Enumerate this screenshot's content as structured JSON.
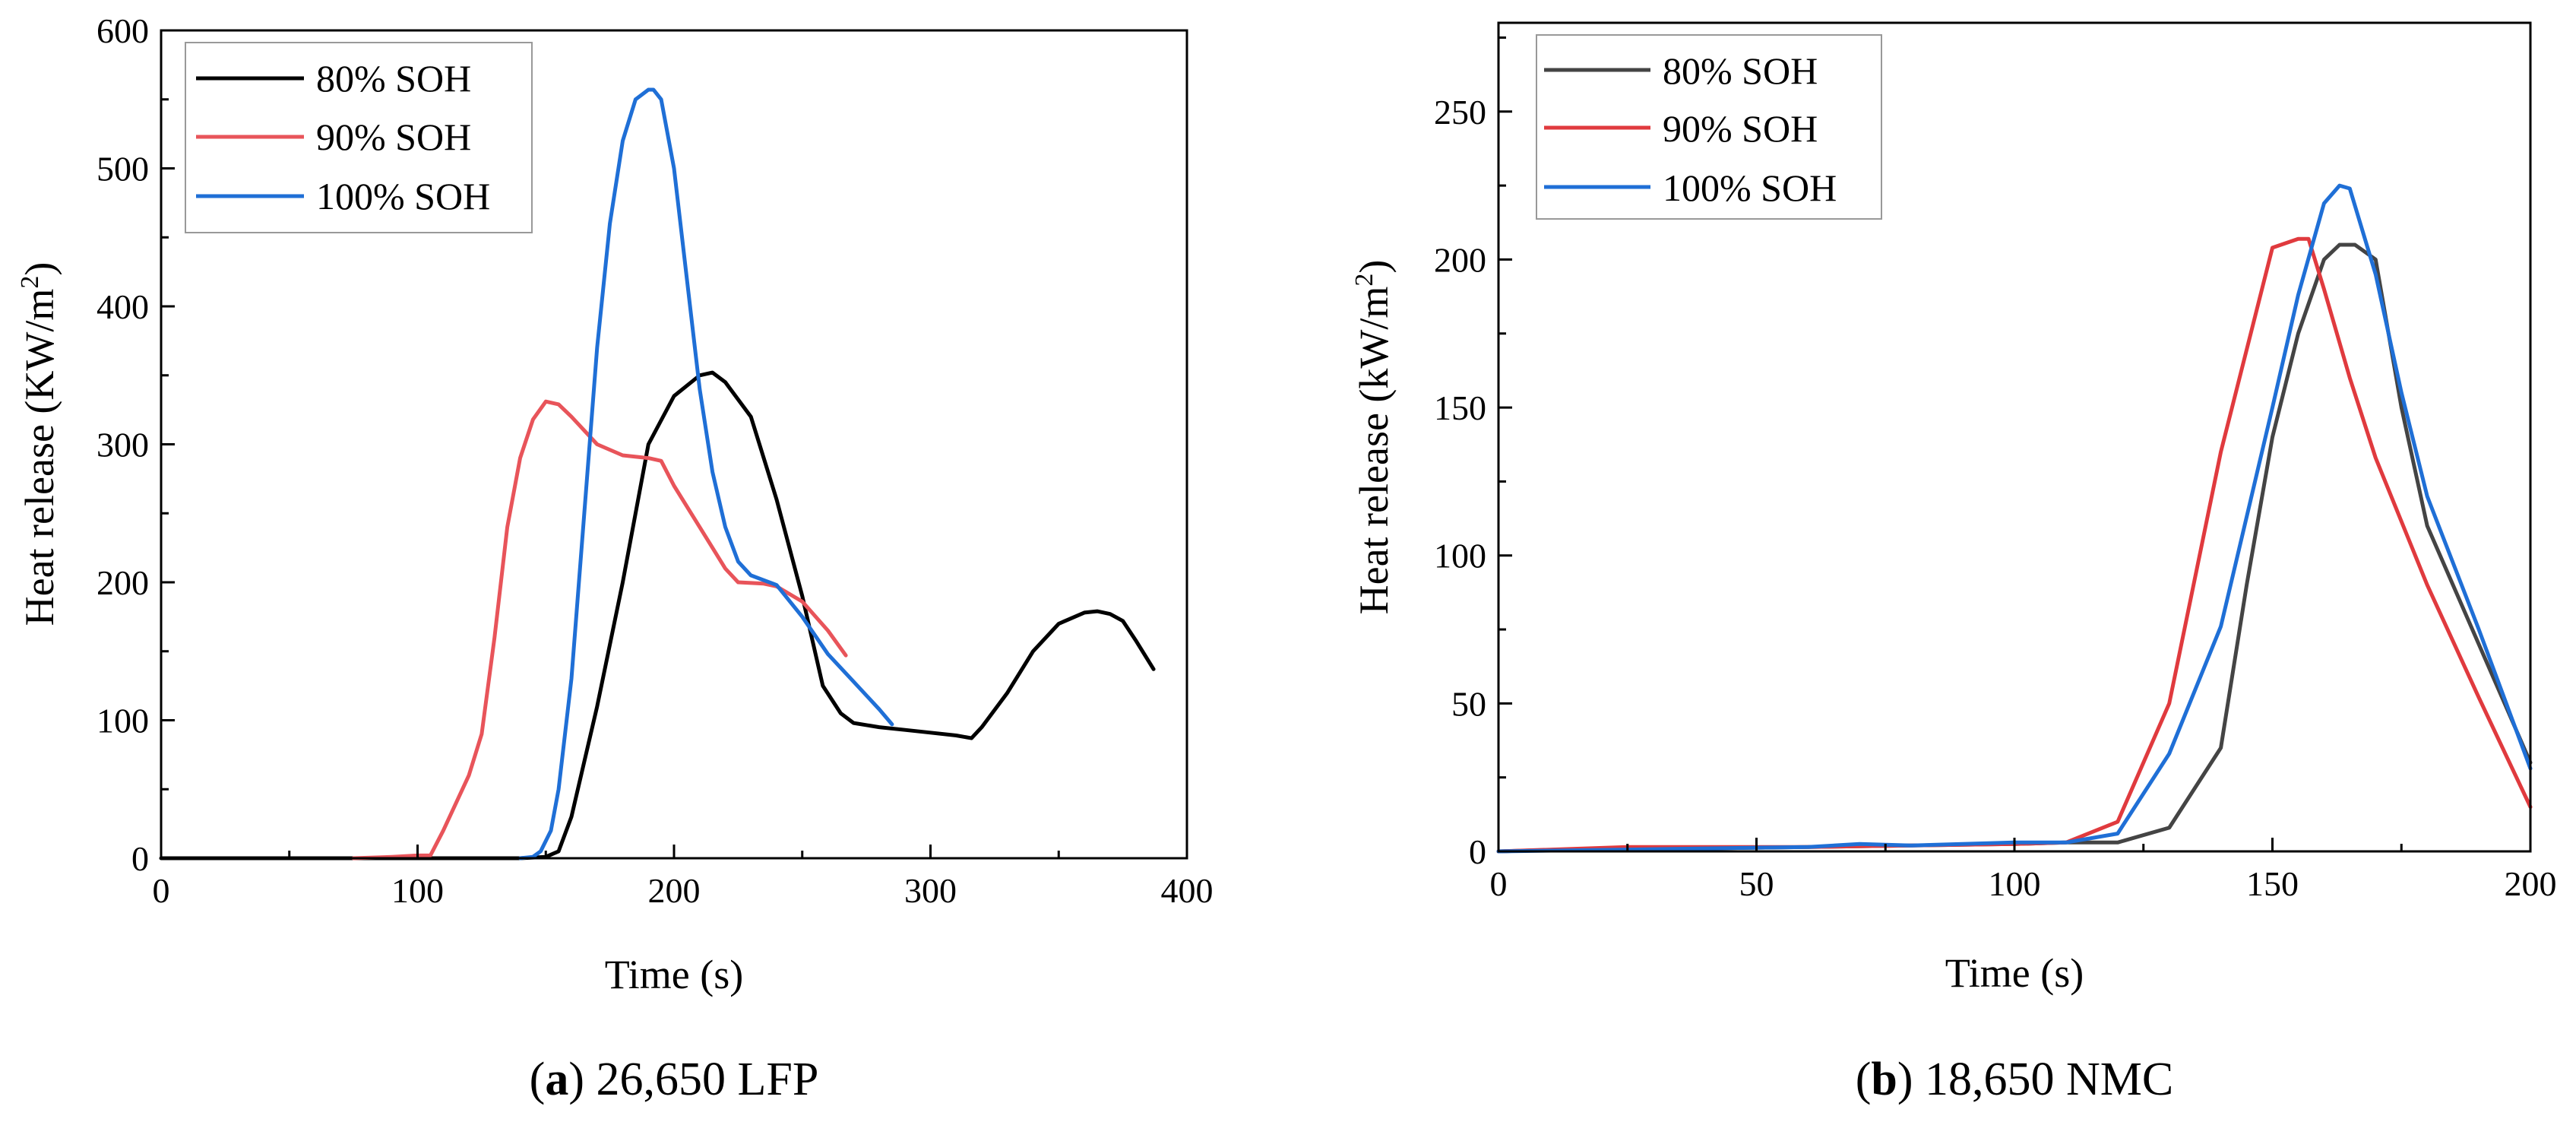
{
  "chart_data": [
    {
      "type": "line",
      "caption": {
        "open": "(",
        "letter": "a",
        "rest": ") 26,650 LFP"
      },
      "xlabel": "Time (s)",
      "ylabel": {
        "main": "Heat release (KW/m",
        "sup": "2",
        "close": ")"
      },
      "xlim": [
        0,
        400
      ],
      "ylim": [
        0,
        600
      ],
      "xticks": [
        0,
        100,
        200,
        300,
        400
      ],
      "yticks": [
        0,
        100,
        200,
        300,
        400,
        500,
        600
      ],
      "grid": false,
      "legend_position": "top-left",
      "series": [
        {
          "name": "80% SOH",
          "color": "#000000",
          "points": [
            [
              0,
              0
            ],
            [
              40,
              0
            ],
            [
              80,
              0
            ],
            [
              120,
              0
            ],
            [
              140,
              0
            ],
            [
              150,
              1
            ],
            [
              155,
              5
            ],
            [
              160,
              30
            ],
            [
              170,
              110
            ],
            [
              180,
              200
            ],
            [
              190,
              300
            ],
            [
              200,
              335
            ],
            [
              210,
              350
            ],
            [
              215,
              352
            ],
            [
              220,
              345
            ],
            [
              230,
              320
            ],
            [
              240,
              260
            ],
            [
              250,
              190
            ],
            [
              258,
              125
            ],
            [
              265,
              105
            ],
            [
              270,
              98
            ],
            [
              280,
              95
            ],
            [
              290,
              93
            ],
            [
              300,
              91
            ],
            [
              310,
              89
            ],
            [
              316,
              87
            ],
            [
              320,
              95
            ],
            [
              330,
              120
            ],
            [
              340,
              150
            ],
            [
              350,
              170
            ],
            [
              360,
              178
            ],
            [
              365,
              179
            ],
            [
              370,
              177
            ],
            [
              375,
              172
            ],
            [
              380,
              158
            ],
            [
              387,
              137
            ]
          ]
        },
        {
          "name": "90% SOH",
          "color": "#e8545a",
          "points": [
            [
              75,
              0
            ],
            [
              90,
              1
            ],
            [
              100,
              2
            ],
            [
              105,
              2
            ],
            [
              110,
              20
            ],
            [
              120,
              60
            ],
            [
              125,
              90
            ],
            [
              130,
              160
            ],
            [
              135,
              240
            ],
            [
              140,
              290
            ],
            [
              145,
              318
            ],
            [
              150,
              331
            ],
            [
              155,
              329
            ],
            [
              160,
              320
            ],
            [
              170,
              300
            ],
            [
              180,
              292
            ],
            [
              190,
              290
            ],
            [
              195,
              288
            ],
            [
              200,
              270
            ],
            [
              210,
              240
            ],
            [
              215,
              225
            ],
            [
              220,
              210
            ],
            [
              225,
              200
            ],
            [
              235,
              199
            ],
            [
              240,
              197
            ],
            [
              250,
              186
            ],
            [
              260,
              165
            ],
            [
              267,
              147
            ]
          ]
        },
        {
          "name": "100% SOH",
          "color": "#1f6fd6",
          "points": [
            [
              140,
              0
            ],
            [
              145,
              1
            ],
            [
              148,
              5
            ],
            [
              152,
              20
            ],
            [
              155,
              50
            ],
            [
              160,
              130
            ],
            [
              165,
              250
            ],
            [
              170,
              370
            ],
            [
              175,
              460
            ],
            [
              180,
              520
            ],
            [
              185,
              550
            ],
            [
              190,
              557
            ],
            [
              192,
              557
            ],
            [
              195,
              550
            ],
            [
              200,
              500
            ],
            [
              205,
              420
            ],
            [
              210,
              340
            ],
            [
              215,
              280
            ],
            [
              220,
              240
            ],
            [
              225,
              215
            ],
            [
              230,
              205
            ],
            [
              240,
              198
            ],
            [
              250,
              175
            ],
            [
              260,
              148
            ],
            [
              270,
              128
            ],
            [
              280,
              108
            ],
            [
              285,
              97
            ]
          ]
        }
      ]
    },
    {
      "type": "line",
      "caption": {
        "open": "(",
        "letter": "b",
        "rest": ") 18,650 NMC"
      },
      "xlabel": "Time (s)",
      "ylabel": {
        "main": "Heat release (kW/m",
        "sup": "2",
        "close": ")"
      },
      "xlim": [
        0,
        200
      ],
      "ylim": [
        0,
        280
      ],
      "xticks": [
        0,
        50,
        100,
        150,
        200
      ],
      "yticks": [
        0,
        50,
        100,
        150,
        200,
        250
      ],
      "grid": false,
      "legend_position": "top-left",
      "series": [
        {
          "name": "80% SOH",
          "color": "#444444",
          "points": [
            [
              0,
              0
            ],
            [
              20,
              1
            ],
            [
              40,
              1
            ],
            [
              60,
              1.5
            ],
            [
              80,
              2
            ],
            [
              100,
              2.5
            ],
            [
              110,
              3
            ],
            [
              120,
              3
            ],
            [
              130,
              8
            ],
            [
              140,
              35
            ],
            [
              145,
              90
            ],
            [
              150,
              140
            ],
            [
              155,
              175
            ],
            [
              160,
              200
            ],
            [
              163,
              205
            ],
            [
              166,
              205
            ],
            [
              170,
              200
            ],
            [
              175,
              150
            ],
            [
              180,
              110
            ],
            [
              190,
              70
            ],
            [
              200,
              30
            ]
          ]
        },
        {
          "name": "90% SOH",
          "color": "#e03a3e",
          "points": [
            [
              0,
              0
            ],
            [
              25,
              1.5
            ],
            [
              40,
              1.5
            ],
            [
              60,
              1.5
            ],
            [
              80,
              2
            ],
            [
              100,
              2.5
            ],
            [
              110,
              3
            ],
            [
              120,
              10
            ],
            [
              130,
              50
            ],
            [
              140,
              135
            ],
            [
              150,
              204
            ],
            [
              155,
              207
            ],
            [
              157,
              207
            ],
            [
              160,
              190
            ],
            [
              165,
              160
            ],
            [
              170,
              133
            ],
            [
              180,
              90
            ],
            [
              190,
              52
            ],
            [
              200,
              15
            ]
          ]
        },
        {
          "name": "100% SOH",
          "color": "#1f6fd6",
          "points": [
            [
              0,
              0
            ],
            [
              20,
              0.5
            ],
            [
              40,
              1
            ],
            [
              60,
              1.5
            ],
            [
              70,
              2.5
            ],
            [
              80,
              2
            ],
            [
              100,
              3
            ],
            [
              110,
              3
            ],
            [
              120,
              6
            ],
            [
              130,
              33
            ],
            [
              140,
              76
            ],
            [
              150,
              150
            ],
            [
              155,
              188
            ],
            [
              160,
              219
            ],
            [
              163,
              225
            ],
            [
              165,
              224
            ],
            [
              170,
              195
            ],
            [
              175,
              155
            ],
            [
              180,
              120
            ],
            [
              190,
              75
            ],
            [
              200,
              28
            ]
          ]
        }
      ]
    }
  ]
}
